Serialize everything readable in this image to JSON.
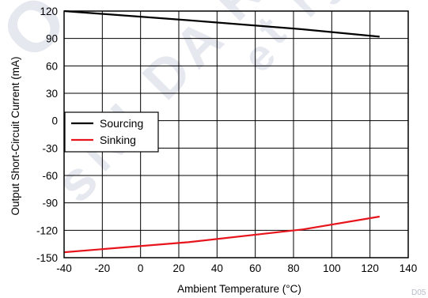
{
  "chart_data": {
    "type": "line",
    "xlabel": "Ambient Temperature (°C)",
    "ylabel": "Output Short-Circuit Current (mA)",
    "xlim": [
      -40,
      140
    ],
    "ylim": [
      -150,
      120
    ],
    "xticks": [
      -40,
      -20,
      0,
      20,
      40,
      60,
      80,
      100,
      120,
      140
    ],
    "yticks": [
      -150,
      -120,
      -90,
      -60,
      -30,
      0,
      30,
      60,
      90,
      120
    ],
    "grid": true,
    "legend_position": "middle-left",
    "series": [
      {
        "name": "Sourcing",
        "color": "#000000",
        "x": [
          -40,
          25,
          85,
          125
        ],
        "y": [
          120,
          110,
          100,
          92
        ]
      },
      {
        "name": "Sinking",
        "color": "#e8141c",
        "x": [
          -40,
          25,
          85,
          125
        ],
        "y": [
          -144,
          -133,
          -119,
          -105
        ]
      }
    ]
  },
  "figure_code": "D05",
  "watermark": {
    "letters": [
      "O",
      "R",
      "A",
      "D",
      "I",
      "N",
      "s",
      "t",
      "r",
      "e",
      "s",
      "R"
    ]
  }
}
